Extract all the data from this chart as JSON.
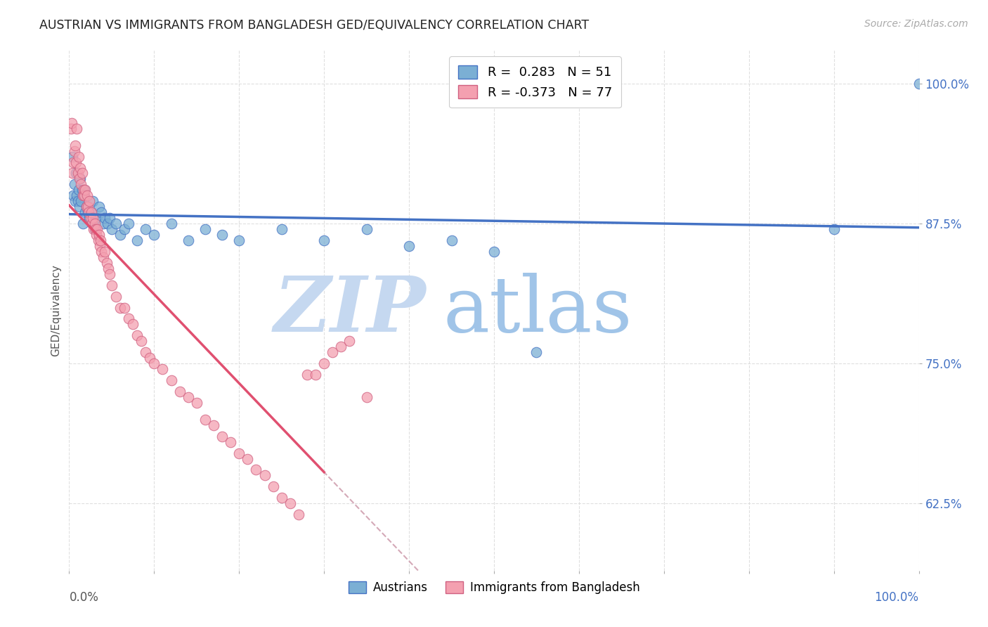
{
  "title": "AUSTRIAN VS IMMIGRANTS FROM BANGLADESH GED/EQUIVALENCY CORRELATION CHART",
  "source": "Source: ZipAtlas.com",
  "ylabel": "GED/Equivalency",
  "ytick_labels": [
    "100.0%",
    "87.5%",
    "75.0%",
    "62.5%"
  ],
  "ytick_values": [
    1.0,
    0.875,
    0.75,
    0.625
  ],
  "xlim": [
    0.0,
    1.0
  ],
  "ylim": [
    0.565,
    1.03
  ],
  "legend_blue_R": "R =  0.283",
  "legend_blue_N": "N = 51",
  "legend_pink_R": "R = -0.373",
  "legend_pink_N": "N = 77",
  "legend_label_blue": "Austrians",
  "legend_label_pink": "Immigrants from Bangladesh",
  "dot_color_blue": "#7bafd4",
  "dot_color_pink": "#f4a0b0",
  "line_color_blue": "#4472c4",
  "line_color_pink": "#e05070",
  "line_color_dashed": "#d0a0b0",
  "watermark_zip": "ZIP",
  "watermark_atlas": "atlas",
  "watermark_color_zip": "#c5d8f0",
  "watermark_color_atlas": "#a0c4e8",
  "background_color": "#ffffff",
  "blue_x": [
    0.004,
    0.005,
    0.006,
    0.007,
    0.008,
    0.009,
    0.01,
    0.011,
    0.012,
    0.013,
    0.014,
    0.015,
    0.016,
    0.017,
    0.018,
    0.019,
    0.02,
    0.022,
    0.024,
    0.026,
    0.028,
    0.03,
    0.032,
    0.035,
    0.038,
    0.04,
    0.042,
    0.045,
    0.048,
    0.05,
    0.055,
    0.06,
    0.065,
    0.07,
    0.08,
    0.09,
    0.1,
    0.12,
    0.14,
    0.16,
    0.18,
    0.2,
    0.25,
    0.3,
    0.35,
    0.4,
    0.45,
    0.5,
    0.55,
    0.9,
    1.0
  ],
  "blue_y": [
    0.935,
    0.9,
    0.91,
    0.895,
    0.92,
    0.9,
    0.895,
    0.905,
    0.89,
    0.915,
    0.895,
    0.905,
    0.875,
    0.9,
    0.905,
    0.885,
    0.89,
    0.885,
    0.88,
    0.885,
    0.895,
    0.87,
    0.88,
    0.89,
    0.885,
    0.875,
    0.88,
    0.875,
    0.88,
    0.87,
    0.875,
    0.865,
    0.87,
    0.875,
    0.86,
    0.87,
    0.865,
    0.875,
    0.86,
    0.87,
    0.865,
    0.86,
    0.87,
    0.86,
    0.87,
    0.855,
    0.86,
    0.85,
    0.76,
    0.87,
    1.0
  ],
  "pink_x": [
    0.002,
    0.003,
    0.004,
    0.005,
    0.006,
    0.007,
    0.008,
    0.009,
    0.01,
    0.011,
    0.012,
    0.013,
    0.014,
    0.015,
    0.016,
    0.017,
    0.018,
    0.019,
    0.02,
    0.021,
    0.022,
    0.023,
    0.024,
    0.025,
    0.026,
    0.027,
    0.028,
    0.029,
    0.03,
    0.031,
    0.032,
    0.033,
    0.034,
    0.035,
    0.036,
    0.037,
    0.038,
    0.04,
    0.042,
    0.044,
    0.046,
    0.048,
    0.05,
    0.055,
    0.06,
    0.065,
    0.07,
    0.075,
    0.08,
    0.085,
    0.09,
    0.095,
    0.1,
    0.11,
    0.12,
    0.13,
    0.14,
    0.15,
    0.16,
    0.17,
    0.18,
    0.19,
    0.2,
    0.21,
    0.22,
    0.23,
    0.24,
    0.25,
    0.26,
    0.27,
    0.28,
    0.29,
    0.3,
    0.31,
    0.32,
    0.33,
    0.35
  ],
  "pink_y": [
    0.96,
    0.965,
    0.92,
    0.93,
    0.94,
    0.945,
    0.93,
    0.96,
    0.92,
    0.935,
    0.915,
    0.925,
    0.91,
    0.92,
    0.9,
    0.905,
    0.9,
    0.905,
    0.89,
    0.9,
    0.89,
    0.885,
    0.895,
    0.88,
    0.885,
    0.875,
    0.88,
    0.87,
    0.875,
    0.87,
    0.865,
    0.87,
    0.86,
    0.865,
    0.855,
    0.86,
    0.85,
    0.845,
    0.85,
    0.84,
    0.835,
    0.83,
    0.82,
    0.81,
    0.8,
    0.8,
    0.79,
    0.785,
    0.775,
    0.77,
    0.76,
    0.755,
    0.75,
    0.745,
    0.735,
    0.725,
    0.72,
    0.715,
    0.7,
    0.695,
    0.685,
    0.68,
    0.67,
    0.665,
    0.655,
    0.65,
    0.64,
    0.63,
    0.625,
    0.615,
    0.74,
    0.74,
    0.75,
    0.76,
    0.765,
    0.77,
    0.72
  ]
}
